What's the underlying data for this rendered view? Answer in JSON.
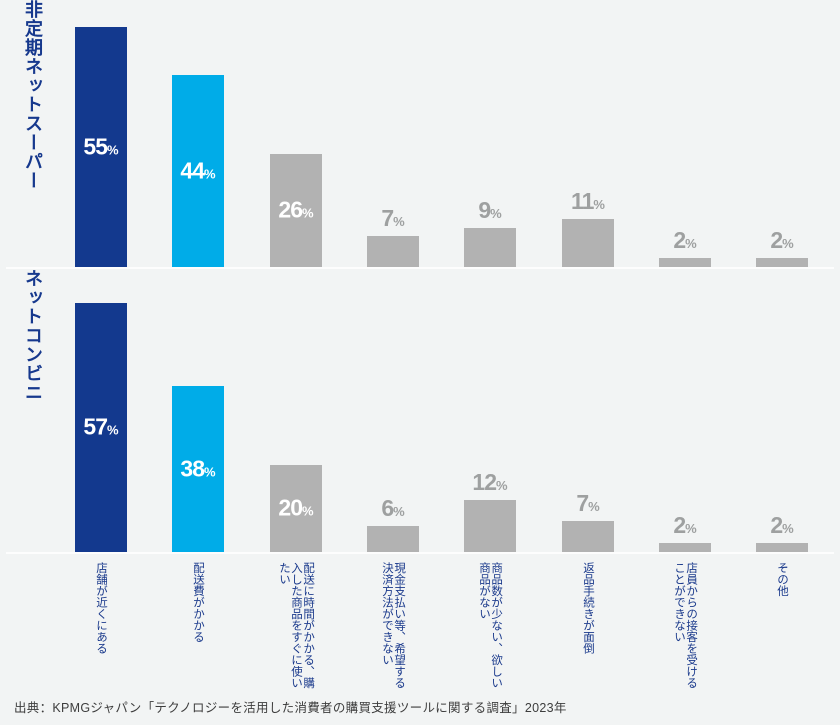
{
  "chart_data": {
    "type": "bar",
    "categories": [
      "店舗が近くにある",
      "配送費がかかる",
      "配送に時間がかかる、購入した商品をすぐに使いたい",
      "現金支払い等、希望する決済方法ができない",
      "商品数が少ない、欲しい商品がない",
      "返品手続きが面倒",
      "店員からの接客を受けることができない",
      "その他"
    ],
    "series": [
      {
        "name": "非定期ネットスーパー",
        "values": [
          55,
          44,
          26,
          7,
          9,
          11,
          2,
          2
        ]
      },
      {
        "name": "ネットコンビニ",
        "values": [
          57,
          38,
          20,
          6,
          12,
          7,
          2,
          2
        ]
      }
    ],
    "unit": "%",
    "title": "",
    "xlabel": "",
    "ylabel": "",
    "ylim": [
      0,
      60
    ],
    "grid": false,
    "legend_position": "row-titles-left",
    "bar_colors": [
      "#13398e",
      "#00ace8",
      "#b2b2b2",
      "#b2b2b2",
      "#b2b2b2",
      "#b2b2b2",
      "#b2b2b2",
      "#b2b2b2"
    ],
    "value_label_inside_threshold": 20
  },
  "colors": {
    "background": "#f2f4f4",
    "dark_blue": "#13398e",
    "light_blue": "#00ace8",
    "gray_bar": "#b2b2b2",
    "gray_value_label": "#9ea0a0",
    "label_blue": "#1b3a8c",
    "baseline": "#fdfdfd",
    "source_text": "#3d3d3d"
  },
  "source": "出典：KPMGジャパン「テクノロジーを活用した消費者の購買支援ツールに関する調査」2023年"
}
